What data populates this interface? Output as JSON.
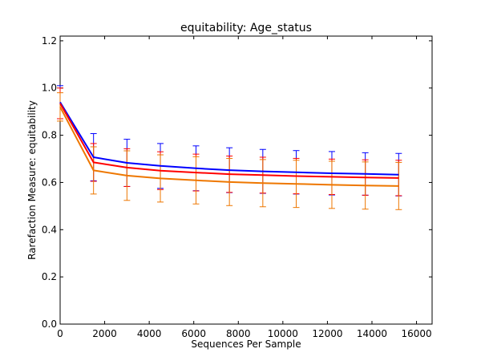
{
  "chart_data": {
    "type": "line",
    "title": "equitability: Age_status",
    "xlabel": "Sequences Per Sample",
    "ylabel": "Rarefaction Measure: equitability",
    "xlim": [
      0,
      16700
    ],
    "ylim": [
      0.0,
      1.22
    ],
    "xticks": [
      0,
      2000,
      4000,
      6000,
      8000,
      10000,
      12000,
      14000,
      16000
    ],
    "yticks": [
      0.0,
      0.2,
      0.4,
      0.6,
      0.8,
      1.0,
      1.2
    ],
    "xtick_labels": [
      "0",
      "2000",
      "4000",
      "6000",
      "8000",
      "10000",
      "12000",
      "14000",
      "16000"
    ],
    "ytick_labels": [
      "0.0",
      "0.2",
      "0.4",
      "0.6",
      "0.8",
      "1.0",
      "1.2"
    ],
    "grid": false,
    "x": [
      0,
      1500,
      3000,
      4500,
      6100,
      7600,
      9100,
      10600,
      12200,
      13700,
      15200
    ],
    "series": [
      {
        "color": "#0000ff",
        "values": [
          0.94,
          0.707,
          0.683,
          0.67,
          0.66,
          0.652,
          0.647,
          0.643,
          0.639,
          0.636,
          0.633
        ],
        "err": [
          0.07,
          0.1,
          0.1,
          0.095,
          0.095,
          0.095,
          0.093,
          0.092,
          0.092,
          0.09,
          0.09
        ]
      },
      {
        "color": "#ff0000",
        "values": [
          0.935,
          0.685,
          0.663,
          0.65,
          0.642,
          0.635,
          0.631,
          0.627,
          0.624,
          0.621,
          0.619
        ],
        "err": [
          0.065,
          0.08,
          0.08,
          0.08,
          0.078,
          0.077,
          0.076,
          0.075,
          0.075,
          0.075,
          0.075
        ]
      },
      {
        "color": "#ee7700",
        "values": [
          0.92,
          0.651,
          0.629,
          0.617,
          0.609,
          0.602,
          0.597,
          0.594,
          0.59,
          0.587,
          0.585
        ],
        "err": [
          0.06,
          0.1,
          0.105,
          0.1,
          0.1,
          0.1,
          0.1,
          0.1,
          0.1,
          0.1,
          0.1
        ]
      }
    ]
  }
}
